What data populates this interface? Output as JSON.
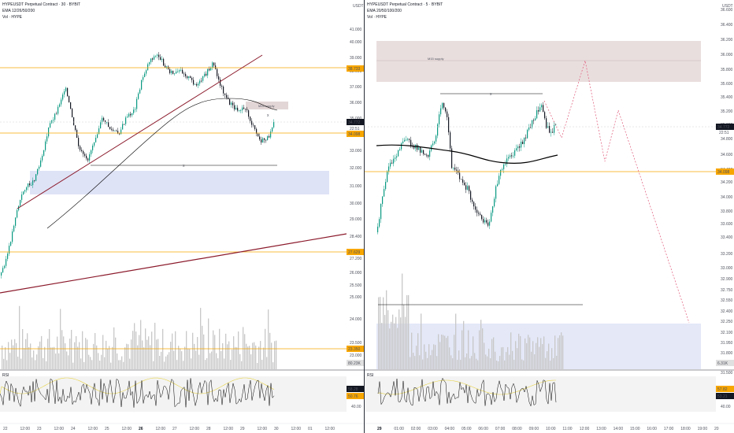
{
  "left_chart": {
    "legend": {
      "title": "HYPEUSDT Perpetual Contract · 30 · BYBIT",
      "ema": "EMA 12/26/50/200",
      "vol": "Vol · HYPE"
    },
    "currency": "USDT",
    "price_axis": [
      "41.000",
      "40.000",
      "39.000",
      "38.000",
      "37.000",
      "36.000",
      "35.000",
      "34.000",
      "33.000",
      "32.000",
      "31.000",
      "30.000",
      "29.000",
      "28.400",
      "27.200",
      "26.000",
      "25.500",
      "25.000",
      "24.000",
      "23.500",
      "23.000"
    ],
    "price_tags": {
      "last": "34.772",
      "last_sub": "22:51",
      "level_top": "38.733",
      "level_mid": "34.098",
      "level_low": "27.629",
      "level_vol": "23.350",
      "vol_value": "80.23K"
    },
    "time_axis": [
      "22",
      "12:00",
      "23",
      "12:00",
      "24",
      "12:00",
      "25",
      "12:00",
      "26",
      "12:00",
      "27",
      "12:00",
      "28",
      "12:00",
      "29",
      "12:00",
      "30",
      "12:00",
      "01",
      "12:00"
    ],
    "time_axis_bold": "26",
    "annotations": {
      "supply": "M15 supply",
      "range_mark": "x",
      "target_mark": "x"
    },
    "rsi_label": "RSI",
    "rsi_values": {
      "top": "58.28",
      "bottom": "50.76",
      "axis_mid": "40.00"
    }
  },
  "right_chart": {
    "legend": {
      "title": "HYPEUSDT Perpetual Contract · 5 · BYBIT",
      "ema": "EMA 20/50/100/200",
      "vol": "Vol · HYPE"
    },
    "currency": "USDT",
    "price_axis": [
      "36.600",
      "36.400",
      "36.200",
      "36.000",
      "35.800",
      "35.600",
      "35.400",
      "35.200",
      "35.000",
      "34.800",
      "34.600",
      "34.400",
      "34.200",
      "34.000",
      "33.800",
      "33.600",
      "33.400",
      "33.200",
      "33.000",
      "32.900",
      "32.750",
      "32.550",
      "32.400",
      "32.250",
      "32.100",
      "31.950",
      "31.800",
      "31.650",
      "31.500"
    ],
    "price_tags": {
      "last": "34.772",
      "last_sub": "22:51",
      "level_mid": "34.098",
      "vol_value": "6.31K"
    },
    "time_axis": [
      "29",
      "01:00",
      "02:00",
      "03:00",
      "04:00",
      "05:00",
      "06:00",
      "07:00",
      "08:00",
      "09:00",
      "10:00",
      "11:00",
      "12:00",
      "13:00",
      "14:00",
      "15:00",
      "16:00",
      "17:00",
      "18:00",
      "19:00",
      "20"
    ],
    "time_axis_bold": "29",
    "annotations": {
      "supply": "M15 supply",
      "range_mark": "x"
    },
    "rsi_label": "RSI",
    "rsi_values": {
      "top": "57.82",
      "bottom": "53.21",
      "axis_mid": "40.00"
    }
  },
  "colors": {
    "up": "#089981",
    "down": "#131722",
    "level": "#f7a600",
    "trend": "#8b1a2b",
    "ema": "#000000",
    "demand_zone": "#c9d1f0",
    "supply_zone": "#e3d6d6",
    "volume": "#c8c8c8",
    "projection": "#e05a7a"
  }
}
